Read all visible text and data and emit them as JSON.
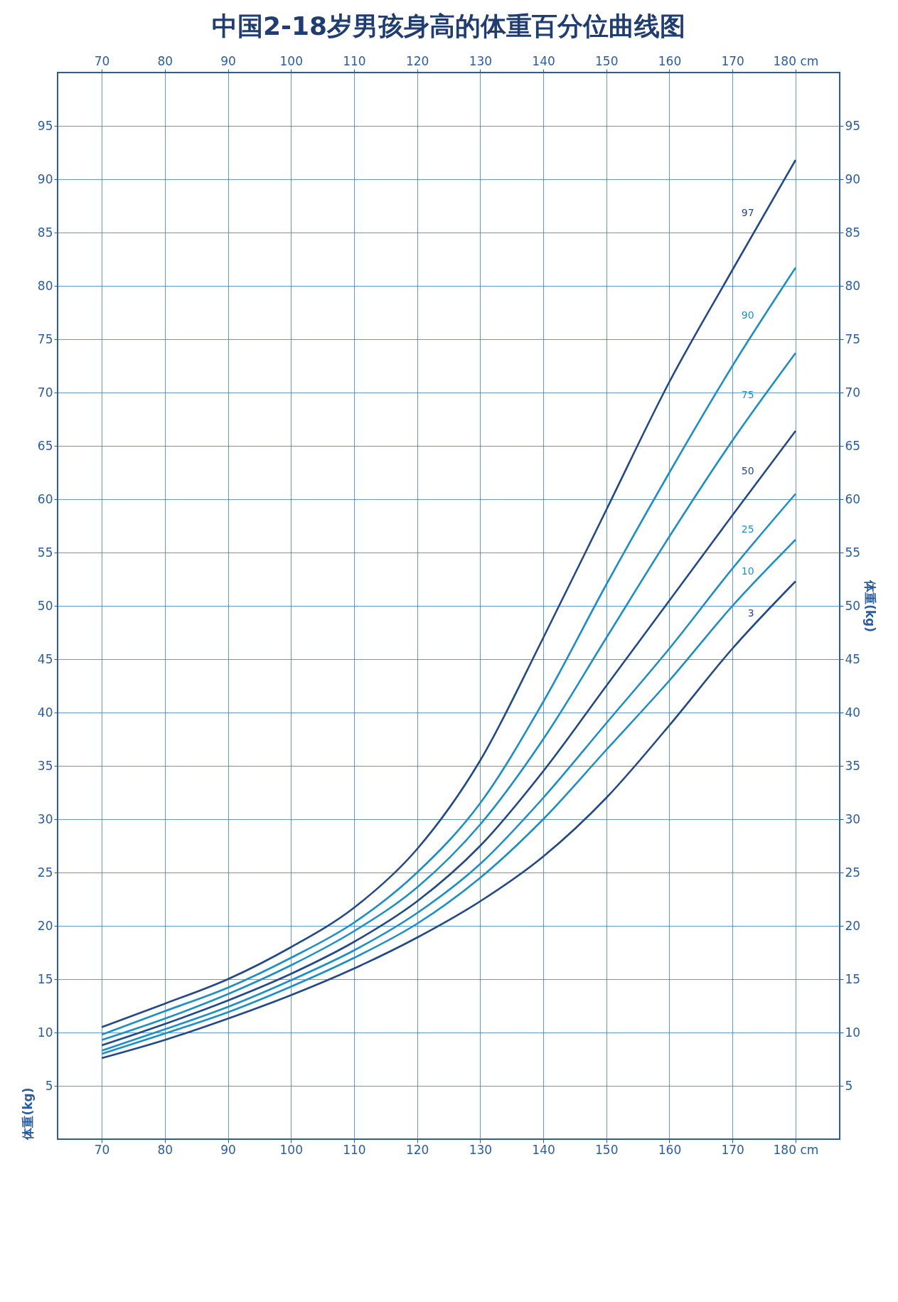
{
  "chart_data": {
    "type": "line",
    "title": "中国2-18岁男孩身高的体重百分位曲线图",
    "ylabel": "体重(kg)",
    "y2label": "体重(kg)",
    "x": [
      70,
      80,
      90,
      100,
      110,
      120,
      130,
      140,
      150,
      160,
      170,
      180
    ],
    "xlim": [
      63,
      187
    ],
    "xticks": [
      70,
      80,
      90,
      100,
      110,
      120,
      130,
      140,
      150,
      160,
      170,
      {
        "value": 180,
        "label": "180 cm"
      }
    ],
    "x2lim": [
      63,
      187
    ],
    "x2ticks": [
      70,
      80,
      90,
      100,
      110,
      120,
      130,
      140,
      150,
      160,
      170,
      {
        "value": 180,
        "label": "180 cm"
      }
    ],
    "ylim": [
      0,
      100
    ],
    "yticks": [
      5,
      10,
      15,
      20,
      25,
      30,
      35,
      40,
      45,
      50,
      55,
      60,
      65,
      70,
      75,
      80,
      85,
      90,
      95
    ],
    "y2lim": [
      0,
      100
    ],
    "y2ticks": [
      5,
      10,
      15,
      20,
      25,
      30,
      35,
      40,
      45,
      50,
      55,
      60,
      65,
      70,
      75,
      80,
      85,
      90,
      95
    ],
    "grid": true,
    "legend": false,
    "marker": "none",
    "line_style": "solid",
    "series": [
      {
        "name": "97",
        "color": "#234a86",
        "values": [
          10.5,
          12.7,
          15.0,
          18.0,
          21.7,
          27.2,
          35.5,
          47,
          59,
          71,
          81.5,
          91.8
        ]
      },
      {
        "name": "90",
        "color": "#1e8fc4",
        "values": [
          9.8,
          12.0,
          14.2,
          17,
          20.3,
          25,
          31.5,
          41,
          52,
          62.5,
          72.5,
          81.7
        ]
      },
      {
        "name": "75",
        "color": "#1e8fc4",
        "values": [
          9.3,
          11.3,
          13.6,
          16.3,
          19.5,
          23.6,
          29.5,
          37.5,
          47,
          56.5,
          65.5,
          73.7
        ]
      },
      {
        "name": "50",
        "color": "#234a86",
        "values": [
          8.8,
          10.8,
          13.0,
          15.5,
          18.5,
          22.3,
          27.5,
          34.5,
          42.5,
          50.5,
          58.5,
          66.4
        ]
      },
      {
        "name": "25",
        "color": "#1e8fc4",
        "values": [
          8.3,
          10.3,
          12.4,
          14.9,
          17.7,
          21.2,
          25.8,
          32,
          39,
          46,
          53.5,
          60.5
        ]
      },
      {
        "name": "10",
        "color": "#1e8fc4",
        "values": [
          8.0,
          9.9,
          11.9,
          14.3,
          17,
          20.2,
          24.5,
          30,
          36.5,
          43,
          50,
          56.2
        ]
      },
      {
        "name": "3",
        "color": "#234a86",
        "values": [
          7.6,
          9.3,
          11.3,
          13.5,
          16.0,
          18.9,
          22.3,
          26.5,
          32,
          38.8,
          46,
          52.3
        ]
      }
    ]
  }
}
